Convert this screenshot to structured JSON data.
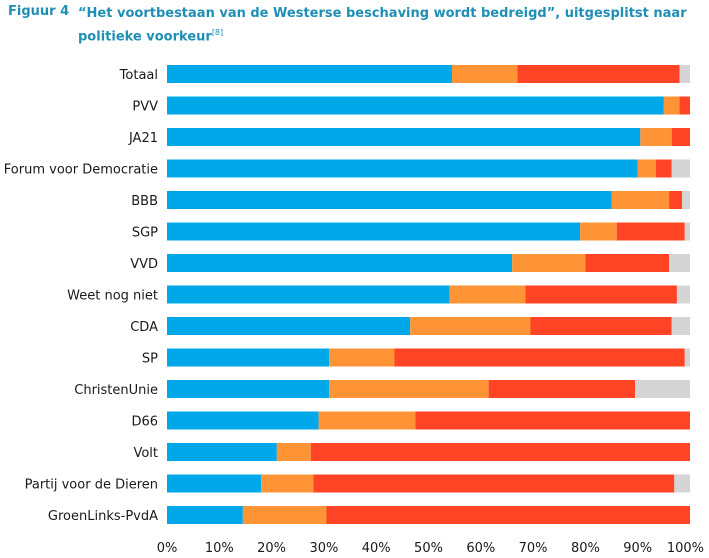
{
  "figure": {
    "label": "Figuur 4",
    "title": "“Het voortbestaan van de Westerse beschaving wordt bedreigd”, uitgesplitst naar politieke voorkeur",
    "footnote": "[8]"
  },
  "colors": {
    "series": [
      "#00a8ea",
      "#ff9436",
      "#ff4425",
      "#d5d5d5"
    ]
  },
  "chart_data": {
    "type": "bar",
    "orientation": "horizontal",
    "stacked": true,
    "title": "“Het voortbestaan van de Westerse beschaving wordt bedreigd”, uitgesplitst naar politieke voorkeur",
    "categories": [
      "Totaal",
      "PVV",
      "JA21",
      "Forum voor Democratie",
      "BBB",
      "SGP",
      "VVD",
      "Weet nog niet",
      "CDA",
      "SP",
      "ChristenUnie",
      "D66",
      "Volt",
      "Partij voor de Dieren",
      "GroenLinks-PvdA"
    ],
    "series": [
      {
        "values": [
          54.5,
          95,
          90.5,
          90,
          85,
          79,
          66,
          54,
          46.5,
          31,
          31,
          29,
          21,
          18,
          14.5
        ]
      },
      {
        "values": [
          12.5,
          3,
          6,
          3.5,
          11,
          7,
          14,
          14.5,
          23,
          12.5,
          30.5,
          18.5,
          6.5,
          10,
          16
        ]
      },
      {
        "values": [
          31,
          2,
          3.5,
          3,
          2.5,
          13,
          16,
          29,
          27,
          55.5,
          28,
          52.5,
          72.5,
          69,
          69.5
        ]
      },
      {
        "values": [
          2,
          0,
          0,
          3.5,
          1.5,
          1,
          4,
          2.5,
          3.5,
          1,
          10.5,
          0,
          0,
          3,
          0
        ]
      }
    ],
    "x_ticks": [
      "0%",
      "10%",
      "20%",
      "30%",
      "40%",
      "50%",
      "60%",
      "70%",
      "80%",
      "90%",
      "100%"
    ],
    "xlim": [
      0,
      100
    ],
    "legend": "none",
    "grid": false
  }
}
